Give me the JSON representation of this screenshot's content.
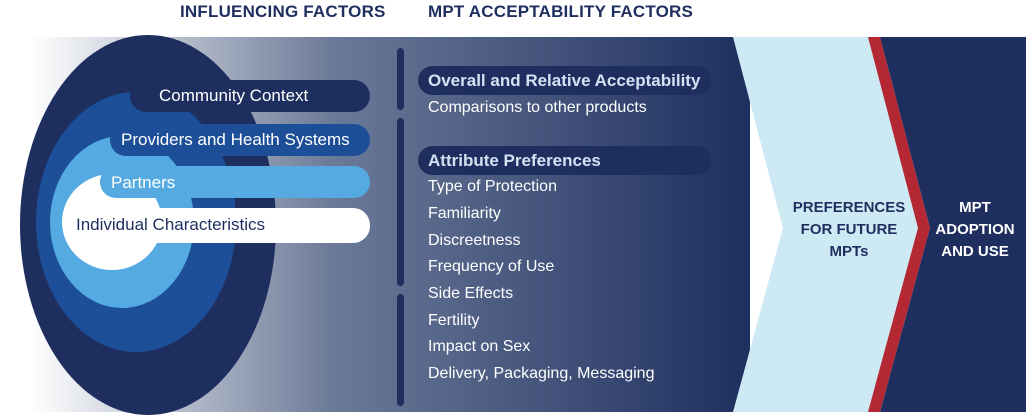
{
  "headings": {
    "influencing": "INFLUENCING FACTORS",
    "acceptability": "MPT ACCEPTABILITY FACTORS"
  },
  "influencing_factors": [
    "Community Context",
    "Providers and Health Systems",
    "Partners",
    "Individual Characteristics"
  ],
  "acceptability": {
    "overall": {
      "title": "Overall and Relative Acceptability",
      "items": [
        "Comparisons to other products"
      ]
    },
    "attributes": {
      "title": "Attribute Preferences",
      "items": [
        "Type of Protection",
        "Familiarity",
        "Discreetness",
        "Frequency of Use",
        "Side Effects",
        "Fertility",
        "Impact on Sex",
        "Delivery, Packaging, Messaging"
      ]
    }
  },
  "stages": {
    "preferences": "PREFERENCES FOR FUTURE MPTs",
    "adoption": "MPT ADOPTION AND USE"
  },
  "colors": {
    "navy": "#1e2f5f",
    "dark_blue": "#1c4f97",
    "mid_blue": "#55abe1",
    "light_blue": "#cde9f4",
    "accent_red": "#b32833",
    "section_header_text": "#d3e2f3"
  }
}
